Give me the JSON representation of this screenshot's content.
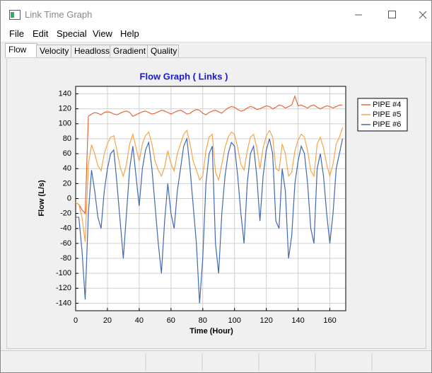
{
  "window": {
    "title": "Link Time Graph"
  },
  "menu": [
    "File",
    "Edit",
    "Special",
    "View",
    "Help"
  ],
  "tabs": [
    "Flow",
    "Velocity",
    "Headloss",
    "Gradient",
    "Quality"
  ],
  "chart_data": {
    "type": "line",
    "title": "Flow Graph ( Links )",
    "x_label": "Time (Hour)",
    "y_label": "Flow (L/s)",
    "x": [
      0,
      2,
      4,
      6,
      8,
      10,
      12,
      14,
      16,
      18,
      20,
      22,
      24,
      26,
      28,
      30,
      32,
      34,
      36,
      38,
      40,
      42,
      44,
      46,
      48,
      50,
      52,
      54,
      56,
      58,
      60,
      62,
      64,
      66,
      68,
      70,
      72,
      74,
      76,
      78,
      80,
      82,
      84,
      86,
      88,
      90,
      92,
      94,
      96,
      98,
      100,
      102,
      104,
      106,
      108,
      110,
      112,
      114,
      116,
      118,
      120,
      122,
      124,
      126,
      128,
      130,
      132,
      134,
      136,
      138,
      140,
      142,
      144,
      146,
      148,
      150,
      152,
      154,
      156,
      158,
      160,
      162,
      164,
      166,
      168
    ],
    "series": [
      {
        "name": "PIPE #4",
        "color": "#e8663d",
        "values": [
          -5,
          -8,
          -15,
          -20,
          110,
          113,
          115,
          114,
          112,
          115,
          116,
          115,
          113,
          112,
          114,
          116,
          117,
          115,
          110,
          112,
          114,
          116,
          117,
          115,
          113,
          114,
          116,
          118,
          117,
          115,
          113,
          115,
          117,
          118,
          116,
          113,
          114,
          117,
          119,
          118,
          114,
          112,
          115,
          117,
          118,
          116,
          114,
          118,
          121,
          123,
          122,
          119,
          117,
          118,
          121,
          123,
          122,
          119,
          120,
          122,
          124,
          123,
          120,
          122,
          125,
          124,
          121,
          123,
          125,
          137,
          124,
          125,
          123,
          121,
          124,
          125,
          122,
          120,
          122,
          124,
          123,
          121,
          123,
          125,
          125
        ]
      },
      {
        "name": "PIPE #5",
        "color": "#f7a44a",
        "values": [
          -5,
          -8,
          -25,
          -58,
          46,
          72,
          60,
          44,
          37,
          60,
          73,
          82,
          84,
          64,
          42,
          30,
          46,
          73,
          86,
          68,
          50,
          73,
          84,
          89,
          73,
          50,
          38,
          30,
          42,
          64,
          46,
          37,
          60,
          73,
          86,
          91,
          73,
          50,
          38,
          25,
          30,
          64,
          82,
          86,
          35,
          25,
          46,
          68,
          82,
          89,
          86,
          68,
          46,
          38,
          64,
          82,
          86,
          68,
          40,
          68,
          84,
          91,
          82,
          40,
          37,
          73,
          60,
          30,
          35,
          64,
          78,
          86,
          82,
          64,
          37,
          30,
          73,
          82,
          68,
          46,
          30,
          46,
          73,
          82,
          95
        ]
      },
      {
        "name": "PIPE #6",
        "color": "#4169b0",
        "values": [
          -25,
          -25,
          -70,
          -135,
          -20,
          38,
          10,
          -25,
          -40,
          10,
          40,
          60,
          65,
          20,
          -30,
          -80,
          -20,
          40,
          70,
          30,
          -10,
          40,
          65,
          75,
          40,
          -10,
          -60,
          -100,
          -30,
          20,
          -20,
          -40,
          10,
          40,
          70,
          80,
          40,
          -10,
          -60,
          -140,
          -80,
          20,
          60,
          70,
          -60,
          -100,
          -20,
          30,
          60,
          75,
          70,
          30,
          -20,
          -60,
          20,
          60,
          70,
          30,
          -30,
          30,
          65,
          80,
          60,
          -30,
          -40,
          40,
          10,
          -80,
          -50,
          20,
          50,
          70,
          60,
          20,
          -40,
          -60,
          40,
          60,
          30,
          -20,
          -60,
          -20,
          40,
          60,
          80
        ]
      }
    ],
    "xlim": [
      0,
      170
    ],
    "xticks": [
      0,
      20,
      40,
      60,
      80,
      100,
      120,
      140,
      160
    ],
    "ylim": [
      -150,
      150
    ],
    "yticks": [
      -140,
      -120,
      -100,
      -80,
      -60,
      -40,
      -20,
      0,
      20,
      40,
      60,
      80,
      100,
      120,
      140
    ],
    "grid": true,
    "legend": "right"
  }
}
